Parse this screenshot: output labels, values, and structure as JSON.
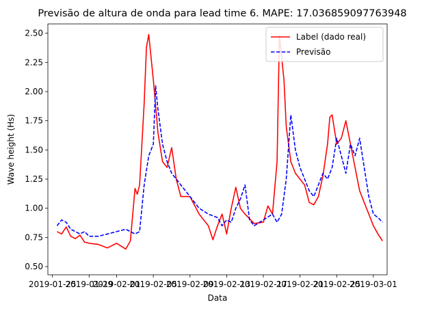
{
  "chart_data": {
    "type": "line",
    "title": "Previsão de altura de onda para lead time 6. MAPE: 17.036859097763948",
    "xlabel": "Data",
    "ylabel": "Wave height (Hs)",
    "xlim": [
      "2019-01-24T12:00",
      "2019-03-02T12:00"
    ],
    "ylim": [
      0.43,
      2.58
    ],
    "yticks": [
      0.5,
      0.75,
      1.0,
      1.25,
      1.5,
      1.75,
      2.0,
      2.25,
      2.5
    ],
    "yticklabels": [
      "0.50",
      "0.75",
      "1.00",
      "1.25",
      "1.50",
      "1.75",
      "2.00",
      "2.25",
      "2.50"
    ],
    "xticks": [
      "2019-01-25",
      "2019-01-29",
      "2019-02-01",
      "2019-02-05",
      "2019-02-09",
      "2019-02-13",
      "2019-02-17",
      "2019-02-21",
      "2019-02-25",
      "2019-03-01"
    ],
    "xticklabels": [
      "2019-01-25",
      "2019-01-29",
      "2019-02-01",
      "2019-02-05",
      "2019-02-09",
      "2019-02-13",
      "2019-02-17",
      "2019-02-21",
      "2019-02-25",
      "2019-03-01"
    ],
    "legend": "top-right",
    "series": [
      {
        "name": "Label (dado real)",
        "color": "#ff0000",
        "style": "solid",
        "points": [
          [
            "2019-01-25T12:00",
            0.8
          ],
          [
            "2019-01-26T00:00",
            0.78
          ],
          [
            "2019-01-26T12:00",
            0.84
          ],
          [
            "2019-01-27T00:00",
            0.76
          ],
          [
            "2019-01-27T12:00",
            0.74
          ],
          [
            "2019-01-28T00:00",
            0.77
          ],
          [
            "2019-01-28T12:00",
            0.71
          ],
          [
            "2019-01-29T00:00",
            0.7
          ],
          [
            "2019-01-30T00:00",
            0.69
          ],
          [
            "2019-01-31T00:00",
            0.66
          ],
          [
            "2019-02-01T00:00",
            0.7
          ],
          [
            "2019-02-02T00:00",
            0.65
          ],
          [
            "2019-02-02T12:00",
            0.72
          ],
          [
            "2019-02-03T00:00",
            1.17
          ],
          [
            "2019-02-03T06:00",
            1.12
          ],
          [
            "2019-02-03T12:00",
            1.2
          ],
          [
            "2019-02-04T00:00",
            1.9
          ],
          [
            "2019-02-04T06:00",
            2.38
          ],
          [
            "2019-02-04T12:00",
            2.49
          ],
          [
            "2019-02-05T00:00",
            2.1
          ],
          [
            "2019-02-05T12:00",
            1.65
          ],
          [
            "2019-02-06T00:00",
            1.4
          ],
          [
            "2019-02-06T12:00",
            1.35
          ],
          [
            "2019-02-07T00:00",
            1.52
          ],
          [
            "2019-02-07T12:00",
            1.25
          ],
          [
            "2019-02-08T00:00",
            1.1
          ],
          [
            "2019-02-09T00:00",
            1.1
          ],
          [
            "2019-02-10T00:00",
            0.95
          ],
          [
            "2019-02-11T00:00",
            0.85
          ],
          [
            "2019-02-11T12:00",
            0.73
          ],
          [
            "2019-02-12T00:00",
            0.85
          ],
          [
            "2019-02-12T12:00",
            0.95
          ],
          [
            "2019-02-13T00:00",
            0.78
          ],
          [
            "2019-02-13T12:00",
            1.0
          ],
          [
            "2019-02-14T00:00",
            1.18
          ],
          [
            "2019-02-14T12:00",
            1.0
          ],
          [
            "2019-02-15T00:00",
            0.95
          ],
          [
            "2019-02-16T00:00",
            0.87
          ],
          [
            "2019-02-17T00:00",
            0.88
          ],
          [
            "2019-02-17T12:00",
            1.02
          ],
          [
            "2019-02-18T00:00",
            0.95
          ],
          [
            "2019-02-18T12:00",
            1.4
          ],
          [
            "2019-02-18T18:00",
            2.48
          ],
          [
            "2019-02-19T06:00",
            2.1
          ],
          [
            "2019-02-19T12:00",
            1.7
          ],
          [
            "2019-02-20T00:00",
            1.4
          ],
          [
            "2019-02-20T12:00",
            1.3
          ],
          [
            "2019-02-21T00:00",
            1.25
          ],
          [
            "2019-02-21T12:00",
            1.2
          ],
          [
            "2019-02-22T00:00",
            1.05
          ],
          [
            "2019-02-22T12:00",
            1.03
          ],
          [
            "2019-02-23T00:00",
            1.1
          ],
          [
            "2019-02-23T12:00",
            1.28
          ],
          [
            "2019-02-24T00:00",
            1.55
          ],
          [
            "2019-02-24T06:00",
            1.78
          ],
          [
            "2019-02-24T12:00",
            1.8
          ],
          [
            "2019-02-25T00:00",
            1.55
          ],
          [
            "2019-02-25T12:00",
            1.6
          ],
          [
            "2019-02-26T00:00",
            1.75
          ],
          [
            "2019-02-26T12:00",
            1.55
          ],
          [
            "2019-02-27T00:00",
            1.35
          ],
          [
            "2019-02-27T12:00",
            1.15
          ],
          [
            "2019-02-28T00:00",
            1.05
          ],
          [
            "2019-02-28T12:00",
            0.95
          ],
          [
            "2019-03-01T00:00",
            0.85
          ],
          [
            "2019-03-01T12:00",
            0.78
          ],
          [
            "2019-03-02T00:00",
            0.72
          ]
        ]
      },
      {
        "name": "Previsão",
        "color": "#0000ff",
        "style": "dashed",
        "points": [
          [
            "2019-01-25T12:00",
            0.85
          ],
          [
            "2019-01-26T00:00",
            0.9
          ],
          [
            "2019-01-26T12:00",
            0.88
          ],
          [
            "2019-01-27T00:00",
            0.82
          ],
          [
            "2019-01-27T12:00",
            0.8
          ],
          [
            "2019-01-28T00:00",
            0.78
          ],
          [
            "2019-01-28T12:00",
            0.8
          ],
          [
            "2019-01-29T00:00",
            0.76
          ],
          [
            "2019-01-30T00:00",
            0.76
          ],
          [
            "2019-01-31T00:00",
            0.78
          ],
          [
            "2019-02-01T00:00",
            0.8
          ],
          [
            "2019-02-02T00:00",
            0.82
          ],
          [
            "2019-02-02T12:00",
            0.8
          ],
          [
            "2019-02-03T00:00",
            0.78
          ],
          [
            "2019-02-03T12:00",
            0.8
          ],
          [
            "2019-02-04T00:00",
            1.2
          ],
          [
            "2019-02-04T12:00",
            1.45
          ],
          [
            "2019-02-05T00:00",
            1.55
          ],
          [
            "2019-02-05T06:00",
            2.05
          ],
          [
            "2019-02-05T12:00",
            1.85
          ],
          [
            "2019-02-06T00:00",
            1.55
          ],
          [
            "2019-02-06T12:00",
            1.4
          ],
          [
            "2019-02-07T00:00",
            1.3
          ],
          [
            "2019-02-07T12:00",
            1.25
          ],
          [
            "2019-02-08T00:00",
            1.2
          ],
          [
            "2019-02-09T00:00",
            1.1
          ],
          [
            "2019-02-10T00:00",
            1.0
          ],
          [
            "2019-02-11T00:00",
            0.95
          ],
          [
            "2019-02-12T00:00",
            0.92
          ],
          [
            "2019-02-12T12:00",
            0.85
          ],
          [
            "2019-02-13T00:00",
            0.9
          ],
          [
            "2019-02-13T12:00",
            0.88
          ],
          [
            "2019-02-14T00:00",
            1.0
          ],
          [
            "2019-02-14T12:00",
            1.08
          ],
          [
            "2019-02-15T00:00",
            1.2
          ],
          [
            "2019-02-15T12:00",
            0.9
          ],
          [
            "2019-02-16T00:00",
            0.85
          ],
          [
            "2019-02-17T00:00",
            0.9
          ],
          [
            "2019-02-18T00:00",
            0.95
          ],
          [
            "2019-02-18T12:00",
            0.88
          ],
          [
            "2019-02-19T00:00",
            0.95
          ],
          [
            "2019-02-19T12:00",
            1.25
          ],
          [
            "2019-02-20T00:00",
            1.8
          ],
          [
            "2019-02-20T12:00",
            1.5
          ],
          [
            "2019-02-21T00:00",
            1.35
          ],
          [
            "2019-02-21T12:00",
            1.25
          ],
          [
            "2019-02-22T00:00",
            1.15
          ],
          [
            "2019-02-22T12:00",
            1.1
          ],
          [
            "2019-02-23T00:00",
            1.2
          ],
          [
            "2019-02-23T12:00",
            1.3
          ],
          [
            "2019-02-24T00:00",
            1.25
          ],
          [
            "2019-02-24T12:00",
            1.35
          ],
          [
            "2019-02-25T00:00",
            1.6
          ],
          [
            "2019-02-25T12:00",
            1.45
          ],
          [
            "2019-02-26T00:00",
            1.3
          ],
          [
            "2019-02-26T12:00",
            1.55
          ],
          [
            "2019-02-27T00:00",
            1.45
          ],
          [
            "2019-02-27T12:00",
            1.6
          ],
          [
            "2019-02-28T00:00",
            1.35
          ],
          [
            "2019-02-28T12:00",
            1.1
          ],
          [
            "2019-03-01T00:00",
            0.95
          ],
          [
            "2019-03-01T12:00",
            0.92
          ],
          [
            "2019-03-02T00:00",
            0.88
          ]
        ]
      }
    ]
  }
}
